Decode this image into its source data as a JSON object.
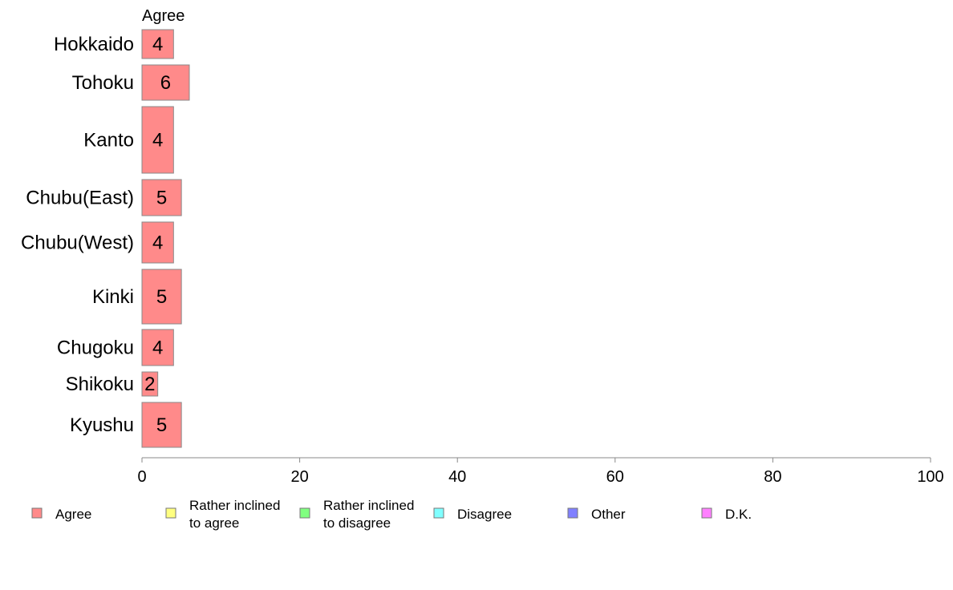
{
  "chart_data": {
    "type": "bar",
    "orientation": "horizontal",
    "stacked": true,
    "categories": [
      "Hokkaido",
      "Tohoku",
      "Kanto",
      "Chubu(East)",
      "Chubu(West)",
      "Kinki",
      "Chugoku",
      "Shikoku",
      "Kyushu"
    ],
    "series": [
      {
        "name": "Agree",
        "color": "#ff8a8a",
        "values": [
          4,
          6,
          4,
          5,
          4,
          5,
          4,
          2,
          5
        ]
      }
    ],
    "series_header": "Agree",
    "xlim": [
      0,
      100
    ],
    "xticks": [
      0,
      20,
      40,
      60,
      80,
      100
    ],
    "grid": false,
    "legend": {
      "placement": "bottom",
      "entries": [
        {
          "lines": [
            "Agree"
          ],
          "color": "#ff8a8a"
        },
        {
          "lines": [
            "Rather inclined",
            "to agree"
          ],
          "color": "#ffff80"
        },
        {
          "lines": [
            "Rather inclined",
            "to disagree"
          ],
          "color": "#80ff80"
        },
        {
          "lines": [
            "Disagree"
          ],
          "color": "#80ffff"
        },
        {
          "lines": [
            "Other"
          ],
          "color": "#8080ff"
        },
        {
          "lines": [
            "D.K."
          ],
          "color": "#ff80ff"
        }
      ]
    }
  }
}
